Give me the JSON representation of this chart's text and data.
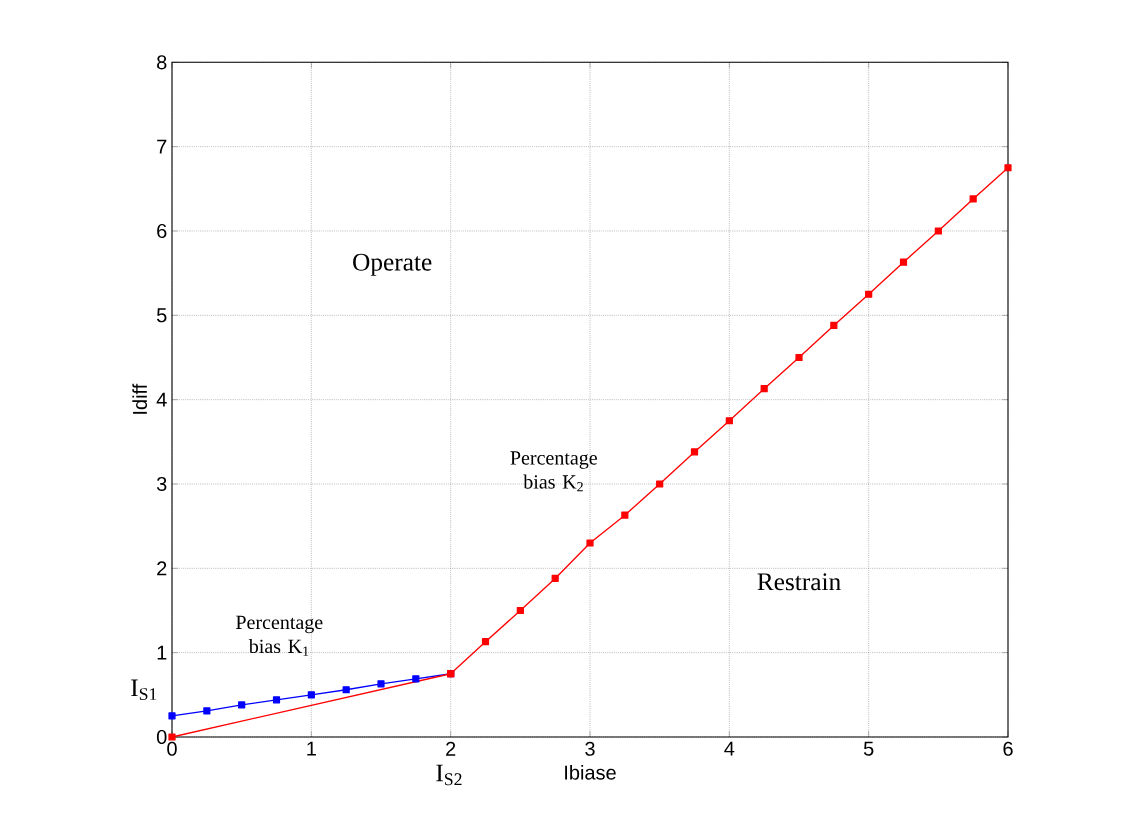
{
  "chart_data": {
    "type": "line",
    "xlabel": "Ibiase",
    "ylabel": "Idiff",
    "xlim": [
      0,
      6
    ],
    "ylim": [
      0,
      8
    ],
    "xticks": [
      0,
      1,
      2,
      3,
      4,
      5,
      6
    ],
    "yticks": [
      0,
      1,
      2,
      3,
      4,
      5,
      6,
      7,
      8
    ],
    "grid": true,
    "marker": "square",
    "series": [
      {
        "color": "#0000ff",
        "x": [
          0,
          0.25,
          0.5,
          0.75,
          1,
          1.25,
          1.5,
          1.75,
          2
        ],
        "values": [
          0.25,
          0.31,
          0.38,
          0.44,
          0.5,
          0.56,
          0.63,
          0.69,
          0.75
        ]
      },
      {
        "color": "#ff0000",
        "x": [
          0,
          2
        ],
        "values": [
          0,
          0.75
        ]
      },
      {
        "color": "#ff0000",
        "x": [
          2,
          2.25,
          2.5,
          2.75,
          3,
          3.25,
          3.5,
          3.75,
          4,
          4.25,
          4.5,
          4.75,
          5,
          5.25,
          5.5,
          5.75,
          6
        ],
        "values": [
          0.75,
          1.13,
          1.5,
          1.88,
          2.3,
          2.63,
          3,
          3.38,
          3.75,
          4.13,
          4.5,
          4.88,
          5.25,
          5.63,
          6,
          6.38,
          6.75
        ]
      }
    ],
    "annotations": [
      "Operate",
      "Percentage bias K$_{1}$",
      "Percentage bias K$_{2}$",
      "Restrain",
      "I$_{S1}$",
      "I$_{S2}$"
    ]
  }
}
